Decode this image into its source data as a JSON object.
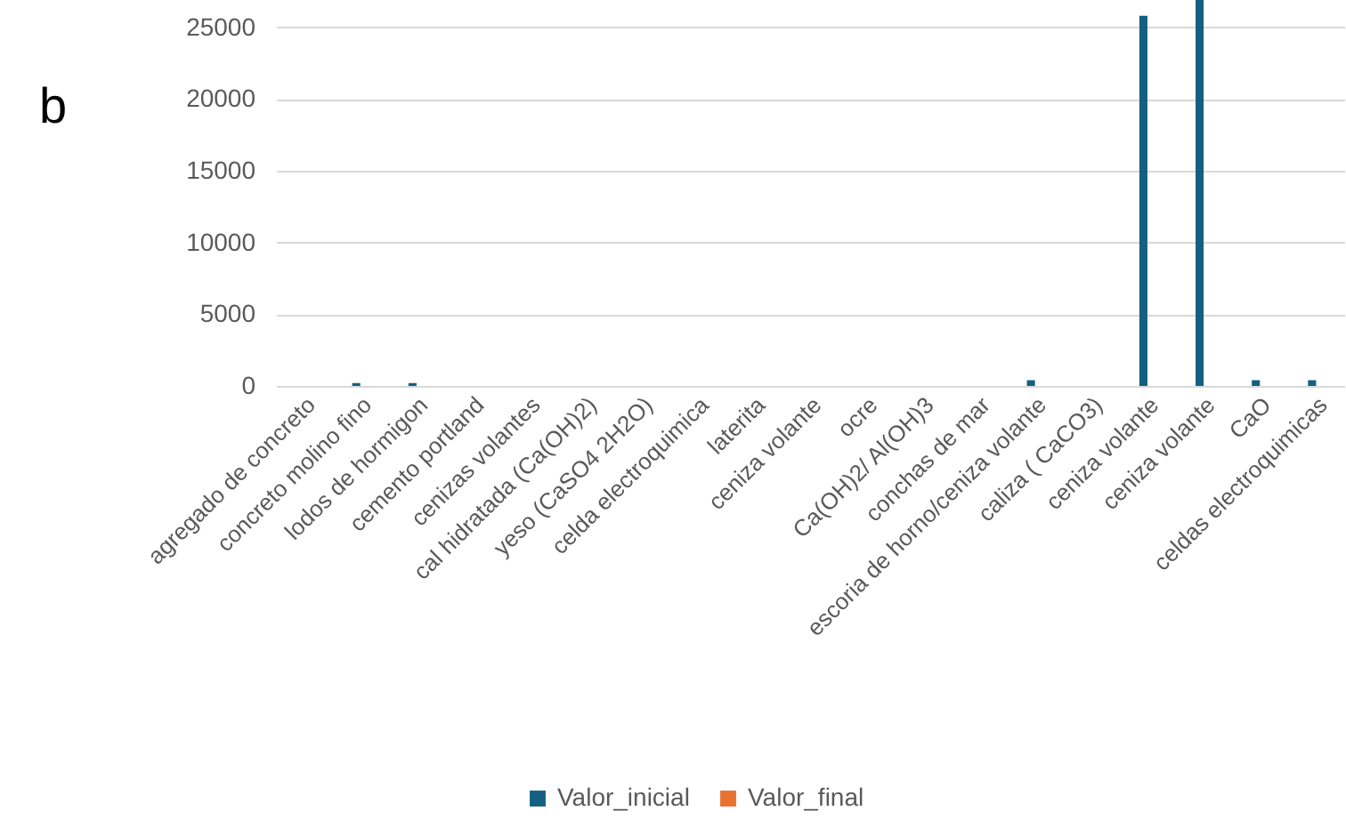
{
  "chart_data": {
    "type": "bar",
    "annotations": [
      "b"
    ],
    "categories": [
      "agregado de concreto",
      "concreto molino fino",
      "lodos de hormigon",
      "cemento portland",
      "cenizas volantes",
      "cal hidratada (Ca(OH)2)",
      "yeso (CaSO4 2H2O)",
      "celda electroquimica",
      "laterita",
      "ceniza volante",
      "ocre",
      "Ca(OH)2/ Al(OH)3",
      "conchas de mar",
      "escoria de horno/ceniza volante",
      "caliza ( CaCO3)",
      "ceniza volante",
      "ceniza volante",
      "CaO",
      "celdas electroquimicas"
    ],
    "series": [
      {
        "name": "Valor_inicial",
        "color": "#156082",
        "values": [
          0,
          200,
          200,
          0,
          0,
          0,
          0,
          0,
          0,
          0,
          0,
          0,
          0,
          400,
          0,
          25800,
          26900,
          400,
          400
        ]
      },
      {
        "name": "Valor_final",
        "color": "#e97132",
        "values": [
          0,
          0,
          0,
          0,
          0,
          0,
          0,
          0,
          0,
          0,
          0,
          0,
          0,
          0,
          0,
          0,
          0,
          0,
          0
        ]
      }
    ],
    "ylim": [
      0,
      26900
    ],
    "yticks": [
      0,
      5000,
      10000,
      15000,
      20000,
      25000
    ],
    "grid": "y",
    "legend": "bottom"
  }
}
